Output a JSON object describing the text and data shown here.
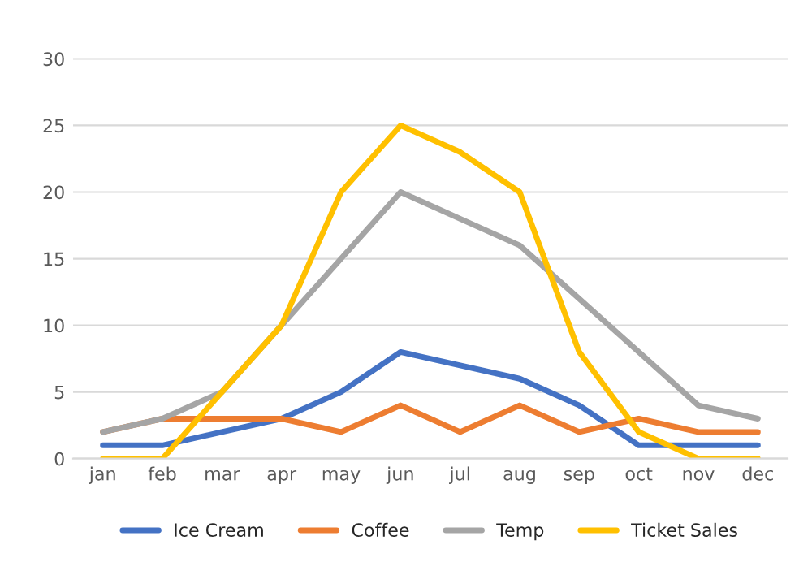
{
  "chart_data": {
    "type": "line",
    "categories": [
      "jan",
      "feb",
      "mar",
      "apr",
      "may",
      "jun",
      "jul",
      "aug",
      "sep",
      "oct",
      "nov",
      "dec"
    ],
    "series": [
      {
        "name": "Ice Cream",
        "color": "#4472c4",
        "values": [
          1,
          1,
          2,
          3,
          5,
          8,
          7,
          6,
          4,
          1,
          1,
          1
        ]
      },
      {
        "name": "Coffee",
        "color": "#ed7d31",
        "values": [
          2,
          3,
          3,
          3,
          2,
          4,
          2,
          4,
          2,
          3,
          2,
          2
        ]
      },
      {
        "name": "Temp",
        "color": "#a5a5a5",
        "values": [
          2,
          3,
          5,
          10,
          15,
          20,
          18,
          16,
          12,
          8,
          4,
          3
        ]
      },
      {
        "name": "Ticket Sales",
        "color": "#ffc000",
        "values": [
          0,
          0,
          5,
          10,
          20,
          25,
          23,
          20,
          8,
          2,
          0,
          0
        ]
      }
    ],
    "ylim": [
      0,
      30
    ],
    "yticks": [
      0,
      5,
      10,
      15,
      20,
      25,
      30
    ],
    "grid": "y",
    "legend": "bottom",
    "marker": "none",
    "line_style": "solid"
  }
}
